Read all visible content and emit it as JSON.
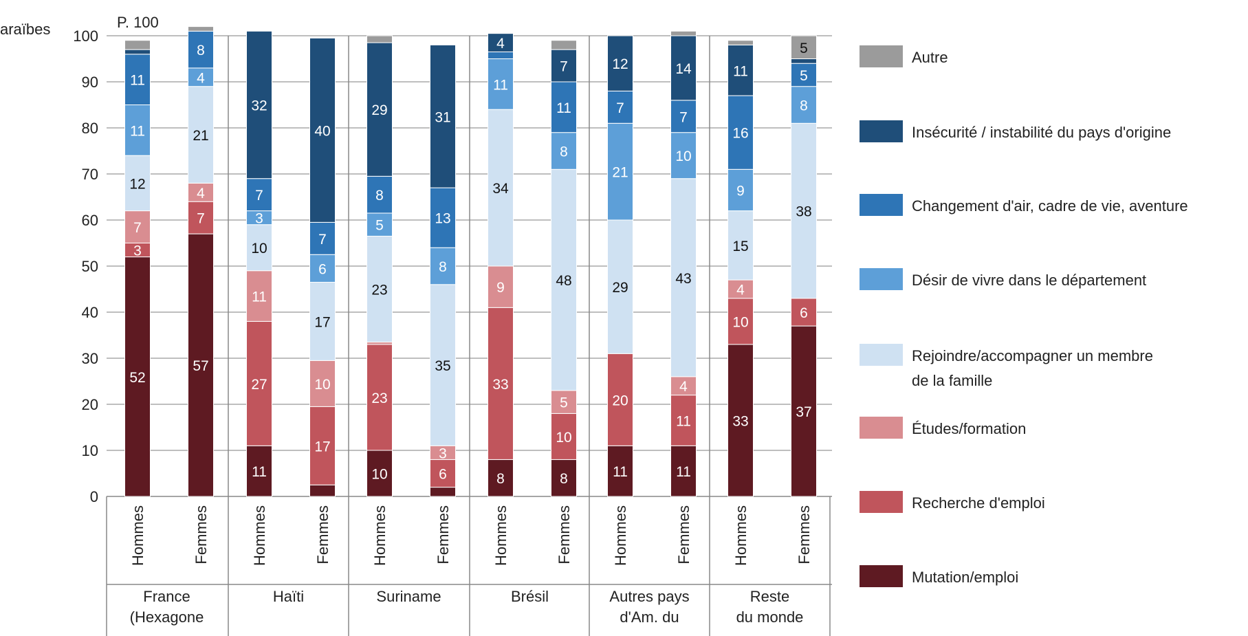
{
  "cut_label": "araïbes",
  "chart_data": {
    "type": "bar",
    "stacked": true,
    "unit_label": "P. 100",
    "ylim": [
      0,
      100
    ],
    "yticks": [
      0,
      10,
      20,
      30,
      40,
      50,
      60,
      70,
      80,
      90,
      100
    ],
    "grid": true,
    "legend_position": "right",
    "groups": [
      {
        "name": "France\n(Hexagone",
        "categories": [
          "Hommes",
          "Femmes"
        ]
      },
      {
        "name": "Haïti",
        "categories": [
          "Hommes",
          "Femmes"
        ]
      },
      {
        "name": "Suriname",
        "categories": [
          "Hommes",
          "Femmes"
        ]
      },
      {
        "name": "Brésil",
        "categories": [
          "Hommes",
          "Femmes"
        ]
      },
      {
        "name": "Autres pays\nd'Am. du",
        "categories": [
          "Hommes",
          "Femmes"
        ]
      },
      {
        "name": "Reste\ndu monde",
        "categories": [
          "Hommes",
          "Femmes"
        ]
      }
    ],
    "series": [
      {
        "name": "Mutation/emploi",
        "color": "#5e1a22",
        "values": [
          52,
          57,
          11,
          2.5,
          10,
          2,
          8,
          8,
          11,
          11,
          33,
          37
        ],
        "labels": [
          "52",
          "57",
          "11",
          "",
          "10",
          "",
          "8",
          "8",
          "11",
          "11",
          "33",
          "37"
        ]
      },
      {
        "name": "Recherche d'emploi",
        "color": "#c0555c",
        "values": [
          3,
          7,
          27,
          17,
          23,
          6,
          33,
          10,
          20,
          11,
          10,
          6
        ],
        "labels": [
          "3",
          "7",
          "27",
          "17",
          "23",
          "6",
          "33",
          "10",
          "20",
          "11",
          "10",
          "6"
        ]
      },
      {
        "name": "Études/formation",
        "color": "#d98d91",
        "values": [
          7,
          4,
          11,
          10,
          0.5,
          3,
          9,
          5,
          0,
          4,
          4,
          0
        ],
        "labels": [
          "7",
          "4",
          "11",
          "10",
          "",
          "3",
          "9",
          "5",
          "",
          "4",
          "4",
          ""
        ]
      },
      {
        "name": "Rejoindre/accompagner un membre\nde la famille",
        "color": "#cfe1f2",
        "values": [
          12,
          21,
          10,
          17,
          23,
          35,
          34,
          48,
          29,
          43,
          15,
          38
        ],
        "labels": [
          "12",
          "21",
          "10",
          "17",
          "23",
          "35",
          "34",
          "48",
          "29",
          "43",
          "15",
          "38"
        ]
      },
      {
        "name": "Désir de vivre dans le département",
        "color": "#5d9fd8",
        "values": [
          11,
          4,
          3,
          6,
          5,
          8,
          11,
          8,
          21,
          10,
          9,
          8
        ],
        "labels": [
          "11",
          "4",
          "3",
          "6",
          "5",
          "8",
          "11",
          "8",
          "21",
          "10",
          "9",
          "8"
        ]
      },
      {
        "name": "Changement d'air, cadre de vie, aventure",
        "color": "#2e75b6",
        "values": [
          11,
          8,
          7,
          7,
          8,
          13,
          1.5,
          11,
          7,
          7,
          16,
          5
        ],
        "labels": [
          "11",
          "8",
          "7",
          "7",
          "8",
          "13",
          "",
          "11",
          "7",
          "7",
          "16",
          "5"
        ]
      },
      {
        "name": "Insécurité / instabilité du pays d'origine",
        "color": "#1f4e79",
        "values": [
          1,
          0,
          32,
          40,
          29,
          31,
          4,
          7,
          12,
          14,
          11,
          1
        ],
        "labels": [
          "",
          "",
          "32",
          "40",
          "29",
          "31",
          "4",
          "7",
          "12",
          "14",
          "11",
          ""
        ]
      },
      {
        "name": "Autre",
        "color": "#9b9b9b",
        "values": [
          2,
          1,
          0,
          0,
          1.5,
          0,
          0,
          2,
          0,
          1,
          1,
          5
        ],
        "labels": [
          "",
          "",
          "",
          "",
          "",
          "",
          "",
          "",
          "",
          "",
          "",
          "5"
        ]
      }
    ]
  }
}
